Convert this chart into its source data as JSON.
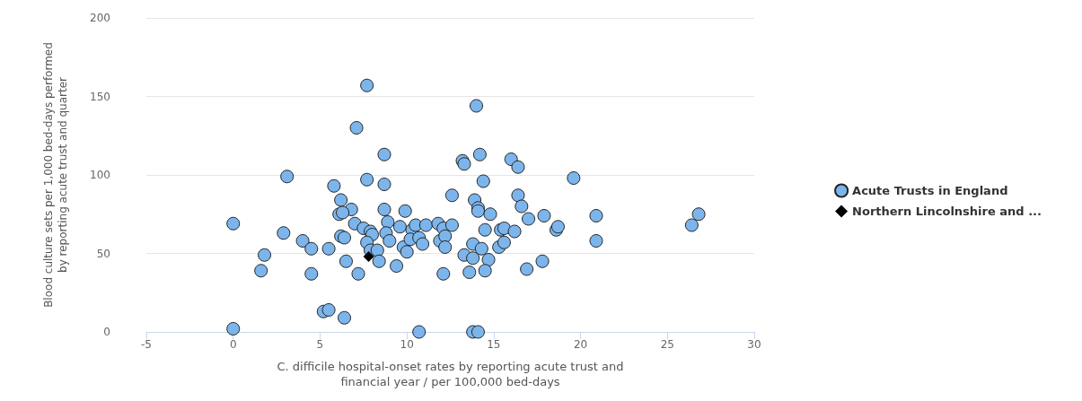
{
  "chart_data": {
    "type": "scatter",
    "xlabel": "C. difficile hospital-onset rates by reporting acute trust and\nfinancial year / per 100,000 bed-days",
    "ylabel": "Blood culture sets per 1,000 bed-days performed\nby reporting acute trust and quarter",
    "xlim": [
      -5,
      30
    ],
    "xticks": [
      -5,
      0,
      5,
      10,
      15,
      20,
      25,
      30
    ],
    "ylim": [
      0,
      200
    ],
    "yticks": [
      0,
      50,
      100,
      150,
      200
    ],
    "grid": "y",
    "legend": "right",
    "series": [
      {
        "name": "Acute Trusts in England",
        "color": "#7cb5ec",
        "marker": "circle",
        "x": [
          7.7,
          7.1,
          8.7,
          3.1,
          7.7,
          5.8,
          8.7,
          6.2,
          6.8,
          6.1,
          6.3,
          8.7,
          9.9,
          0,
          7.0,
          8.9,
          7.5,
          7.9,
          8.0,
          9.6,
          10.3,
          10.5,
          11.1,
          11.8,
          12.1,
          12.6,
          12.6,
          2.9,
          4.0,
          4.5,
          5.5,
          6.2,
          6.4,
          7.7,
          8.8,
          9.0,
          7.9,
          8.3,
          9.8,
          10.0,
          10.2,
          10.7,
          10.9,
          11.9,
          12.2,
          12.2,
          1.8,
          1.6,
          4.5,
          6.5,
          7.2,
          8.4,
          9.4,
          12.1,
          5.2,
          5.5,
          6.4,
          0,
          10.7,
          14.0,
          14.2,
          13.2,
          13.3,
          16.0,
          16.4,
          19.6,
          14.4,
          16.4,
          16.6,
          13.9,
          14.1,
          14.1,
          14.8,
          17.0,
          17.9,
          20.9,
          26.8,
          26.4,
          14.5,
          15.4,
          15.6,
          16.2,
          18.6,
          18.7,
          20.9,
          13.8,
          14.3,
          15.3,
          15.6,
          13.3,
          13.8,
          14.7,
          17.8,
          13.6,
          14.5,
          16.9,
          13.8,
          14.1
        ],
        "values": [
          157,
          130,
          113,
          99,
          97,
          93,
          94,
          84,
          78,
          75,
          76,
          78,
          77,
          69,
          69,
          70,
          66,
          64,
          62,
          67,
          65,
          68,
          68,
          69,
          66,
          68,
          87,
          63,
          58,
          53,
          53,
          61,
          60,
          57,
          63,
          58,
          52,
          52,
          54,
          51,
          59,
          60,
          56,
          58,
          61,
          54,
          49,
          39,
          37,
          45,
          37,
          45,
          42,
          37,
          13,
          14,
          9,
          2,
          0,
          144,
          113,
          109,
          107,
          110,
          105,
          98,
          96,
          87,
          80,
          84,
          79,
          77,
          75,
          72,
          74,
          74,
          75,
          68,
          65,
          65,
          66,
          64,
          65,
          67,
          58,
          56,
          53,
          54,
          57,
          49,
          47,
          46,
          45,
          38,
          39,
          40,
          0,
          0
        ]
      },
      {
        "name": "Northern Lincolnshire and ...",
        "color": "#000000",
        "marker": "diamond",
        "x": [
          7.8
        ],
        "values": [
          48
        ]
      }
    ]
  }
}
